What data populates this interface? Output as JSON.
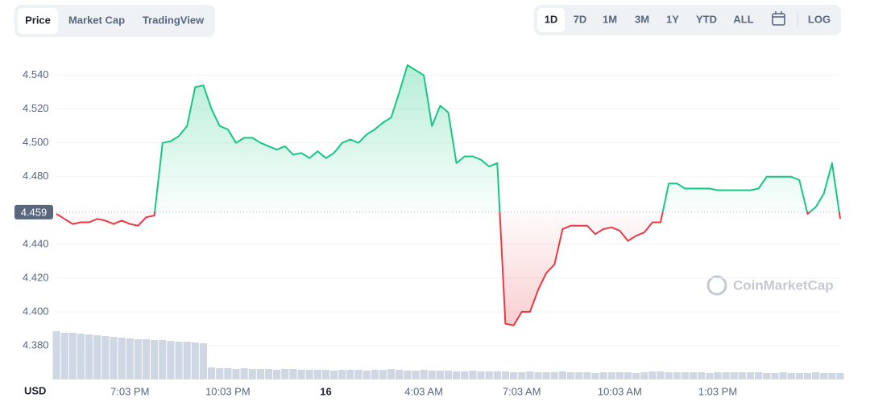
{
  "ui": {
    "tabs": [
      "Price",
      "Market Cap",
      "TradingView"
    ],
    "ranges": [
      "1D",
      "7D",
      "1M",
      "3M",
      "1Y",
      "YTD",
      "ALL"
    ],
    "log": "LOG",
    "currency": "USD",
    "watermark": "CoinMarketCap"
  },
  "chart_data": {
    "type": "line",
    "categories": [
      null,
      null,
      null,
      null,
      null,
      null,
      null,
      null,
      null,
      "7:03 PM",
      null,
      null,
      null,
      null,
      null,
      null,
      null,
      null,
      null,
      null,
      null,
      "10:03 PM",
      null,
      null,
      null,
      null,
      null,
      null,
      null,
      null,
      null,
      null,
      null,
      "16",
      null,
      null,
      null,
      null,
      null,
      null,
      null,
      null,
      null,
      null,
      null,
      "4:03 AM",
      null,
      null,
      null,
      null,
      null,
      null,
      null,
      null,
      null,
      null,
      null,
      "7:03 AM",
      null,
      null,
      null,
      null,
      null,
      null,
      null,
      null,
      null,
      null,
      null,
      "10:03 AM",
      null,
      null,
      null,
      null,
      null,
      null,
      null,
      null,
      null,
      null,
      null,
      "1:03 PM",
      null,
      null,
      null,
      null,
      null,
      null,
      null,
      null,
      null,
      null,
      null,
      null,
      null,
      null,
      null
    ],
    "values": [
      4.458,
      4.455,
      4.452,
      4.453,
      4.453,
      4.455,
      4.454,
      4.452,
      4.454,
      4.452,
      4.451,
      4.456,
      4.457,
      4.5,
      4.501,
      4.504,
      4.51,
      4.533,
      4.534,
      4.52,
      4.51,
      4.508,
      4.5,
      4.503,
      4.503,
      4.5,
      4.498,
      4.496,
      4.498,
      4.493,
      4.494,
      4.491,
      4.495,
      4.491,
      4.494,
      4.5,
      4.502,
      4.5,
      4.505,
      4.508,
      4.512,
      4.515,
      4.53,
      4.546,
      4.543,
      4.54,
      4.51,
      4.522,
      4.518,
      4.488,
      4.492,
      4.492,
      4.49,
      4.486,
      4.488,
      4.393,
      4.392,
      4.4,
      4.4,
      4.413,
      4.423,
      4.428,
      4.449,
      4.451,
      4.451,
      4.451,
      4.446,
      4.449,
      4.45,
      4.448,
      4.442,
      4.445,
      4.447,
      4.453,
      4.453,
      4.476,
      4.476,
      4.473,
      4.473,
      4.473,
      4.473,
      4.472,
      4.472,
      4.472,
      4.472,
      4.472,
      4.473,
      4.48,
      4.48,
      4.48,
      4.48,
      4.478,
      4.458,
      4.462,
      4.47,
      4.488,
      4.455
    ],
    "volume": [
      60,
      58,
      58,
      57,
      56,
      55,
      54,
      53,
      52,
      51,
      50,
      50,
      49,
      49,
      48,
      47,
      47,
      46,
      45,
      15,
      14,
      14,
      13,
      14,
      13,
      13,
      13,
      12,
      13,
      13,
      12,
      12,
      12,
      12,
      11,
      12,
      12,
      12,
      11,
      12,
      12,
      13,
      12,
      11,
      11,
      12,
      11,
      11,
      11,
      10,
      10,
      11,
      10,
      10,
      10,
      10,
      9,
      9,
      10,
      9,
      9,
      9,
      10,
      9,
      9,
      9,
      8,
      9,
      9,
      9,
      9,
      8,
      9,
      10,
      10,
      9,
      9,
      9,
      9,
      9,
      8,
      9,
      9,
      9,
      9,
      9,
      9,
      8,
      8,
      9,
      8,
      8,
      8,
      9,
      8,
      8,
      8
    ],
    "volume_lim": [
      0,
      100
    ],
    "baseline": 4.459,
    "up_color": "#16c784",
    "down_color": "#ea3943",
    "volume_color": "#cfd6e4",
    "ylim": [
      4.36,
      4.556
    ],
    "yticks": [
      {
        "value": 4.38,
        "label": "4.380"
      },
      {
        "value": 4.4,
        "label": "4.400"
      },
      {
        "value": 4.42,
        "label": "4.420"
      },
      {
        "value": 4.44,
        "label": "4.440"
      },
      {
        "value": 4.48,
        "label": "4.480"
      },
      {
        "value": 4.5,
        "label": "4.500"
      },
      {
        "value": 4.52,
        "label": "4.520"
      },
      {
        "value": 4.54,
        "label": "4.540"
      }
    ],
    "grid": true
  }
}
